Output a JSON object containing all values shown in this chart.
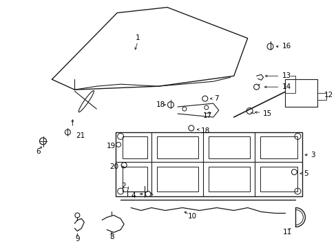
{
  "background_color": "#ffffff",
  "line_color": "#1a1a1a",
  "text_color": "#000000",
  "figsize": [
    4.89,
    3.6
  ],
  "dpi": 100
}
